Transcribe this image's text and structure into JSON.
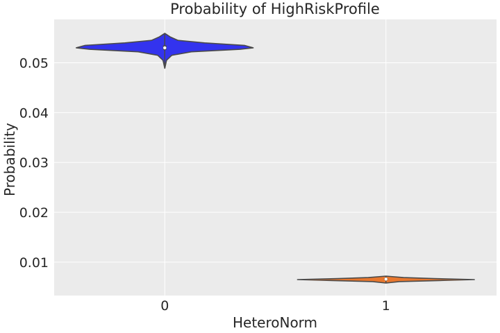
{
  "chart_data": {
    "type": "violin",
    "title": "Probability of HighRiskProfile",
    "xlabel": "HeteroNorm",
    "ylabel": "Probability",
    "categories": [
      "0",
      "1"
    ],
    "ylim": [
      0.0033,
      0.0587
    ],
    "yticks": [
      0.01,
      0.02,
      0.03,
      0.04,
      0.05
    ],
    "ytick_labels": [
      "0.01",
      "0.02",
      "0.03",
      "0.04",
      "0.05"
    ],
    "grid": true,
    "background": "#ebebeb",
    "violins": [
      {
        "category": "0",
        "color": "#3333ee",
        "min": 0.0489,
        "q1": 0.0526,
        "median": 0.053,
        "q3": 0.0535,
        "max": 0.0559,
        "profile": [
          [
            0.0489,
            0.0
          ],
          [
            0.0505,
            0.02
          ],
          [
            0.0515,
            0.08
          ],
          [
            0.0522,
            0.3
          ],
          [
            0.0527,
            0.85
          ],
          [
            0.053,
            1.0
          ],
          [
            0.0535,
            0.9
          ],
          [
            0.054,
            0.45
          ],
          [
            0.0545,
            0.15
          ],
          [
            0.0552,
            0.06
          ],
          [
            0.0559,
            0.0
          ]
        ]
      },
      {
        "category": "1",
        "color": "#e8772e",
        "min": 0.0058,
        "q1": 0.0064,
        "median": 0.0066,
        "q3": 0.0068,
        "max": 0.0072,
        "profile": [
          [
            0.0058,
            0.0
          ],
          [
            0.0061,
            0.15
          ],
          [
            0.0063,
            0.6
          ],
          [
            0.0065,
            1.0
          ],
          [
            0.0067,
            0.55
          ],
          [
            0.0069,
            0.2
          ],
          [
            0.0072,
            0.0
          ]
        ]
      }
    ]
  }
}
